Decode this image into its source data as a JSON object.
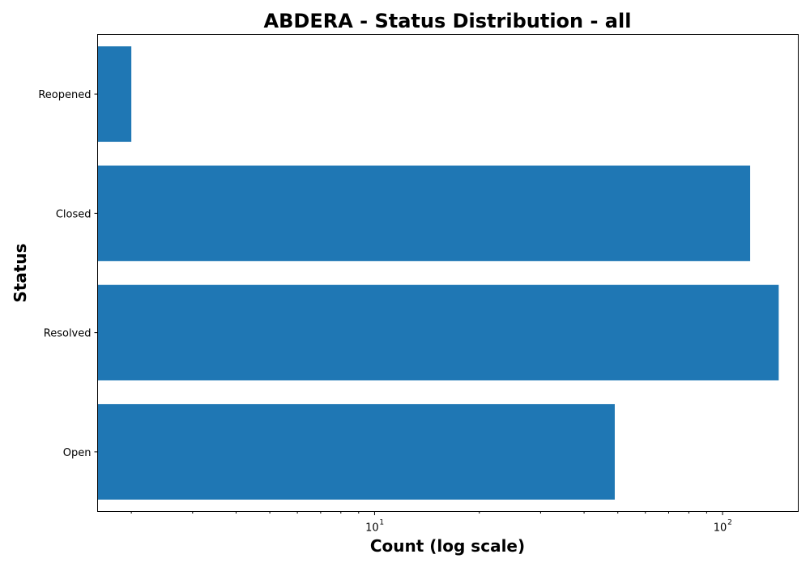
{
  "chart_data": {
    "type": "bar",
    "orientation": "horizontal",
    "title": "ABDERA - Status Distribution - all",
    "xlabel": "Count (log scale)",
    "ylabel": "Status",
    "x_scale": "log",
    "xlim": [
      1.6,
      165
    ],
    "x_ticks": [
      {
        "value": 10,
        "base": "10",
        "exp": "1"
      },
      {
        "value": 100,
        "base": "10",
        "exp": "2"
      }
    ],
    "categories": [
      "Open",
      "Resolved",
      "Closed",
      "Reopened"
    ],
    "values": [
      49,
      145,
      120,
      2
    ],
    "bar_color": "#1f77b4",
    "grid": false,
    "legend": "none"
  }
}
